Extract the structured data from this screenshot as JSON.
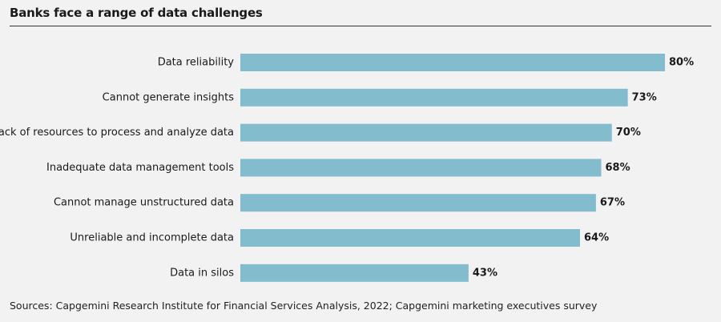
{
  "title": "Banks face a range of data challenges",
  "source": "Sources: Capgemini Research Institute for Financial Services Analysis, 2022; Capgemini marketing executives survey",
  "colors": {
    "bar": "#82bccd",
    "background": "#f2f2f2",
    "text": "#1a1a1a"
  },
  "chart_data": {
    "type": "bar",
    "orientation": "horizontal",
    "title": "Banks face a range of data challenges",
    "categories": [
      "Data reliability",
      "Cannot generate insights",
      "Lack of resources to process and analyze data",
      "Inadequate data management tools",
      "Cannot manage unstructured data",
      "Unreliable and incomplete data",
      "Data in silos"
    ],
    "values": [
      80,
      73,
      70,
      68,
      67,
      64,
      43
    ],
    "value_labels": [
      "80%",
      "73%",
      "70%",
      "68%",
      "67%",
      "64%",
      "43%"
    ],
    "unit": "%",
    "xlim": [
      0,
      80
    ],
    "grid": false,
    "legend": false
  }
}
